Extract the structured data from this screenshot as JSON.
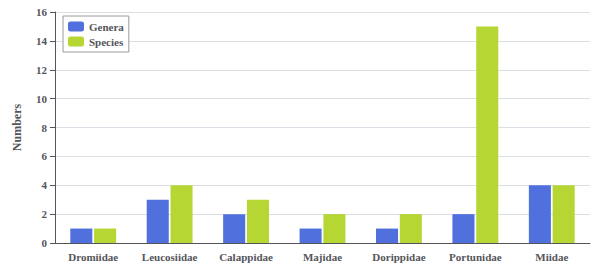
{
  "chart_data": {
    "type": "bar",
    "categories": [
      "Dromiidae",
      "Leucosiidae",
      "Calappidae",
      "Majidae",
      "Dorippidae",
      "Portunidae",
      "Miidae"
    ],
    "series": [
      {
        "name": "Genera",
        "values": [
          1,
          3,
          2,
          1,
          1,
          2,
          4
        ]
      },
      {
        "name": "Species",
        "values": [
          1,
          4,
          3,
          2,
          2,
          15,
          4
        ]
      }
    ],
    "ylabel": "Numbers",
    "ylim": [
      0,
      16
    ],
    "yticks": [
      0,
      2,
      4,
      6,
      8,
      10,
      12,
      14,
      16
    ],
    "grid": true,
    "legend": "upper left"
  }
}
